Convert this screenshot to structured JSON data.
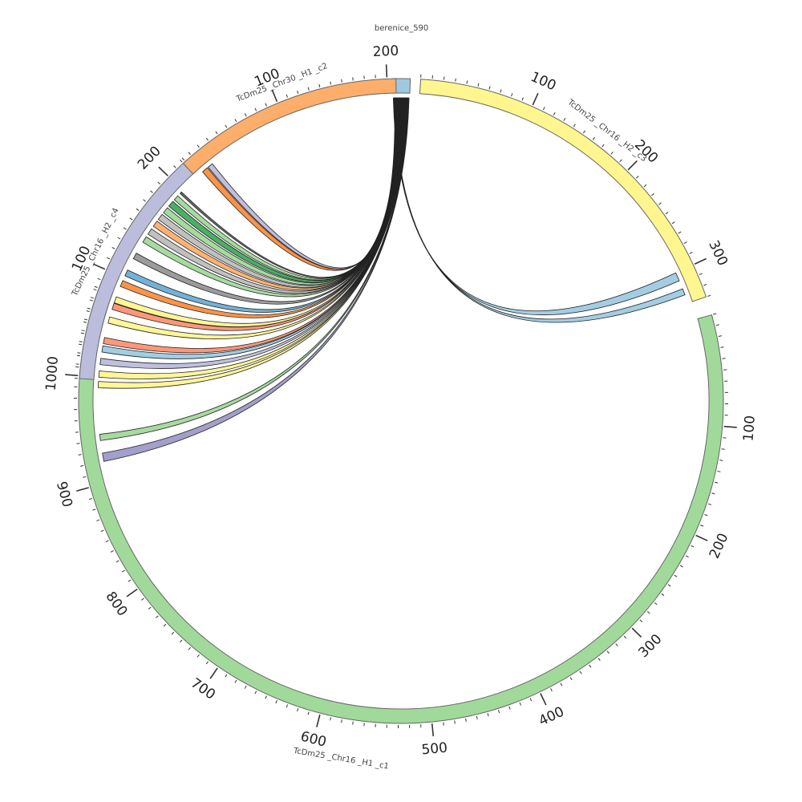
{
  "chart_data": {
    "type": "chord",
    "segments": [
      {
        "id": "berenice_590",
        "label": "berenice_590",
        "length": 7,
        "color": "#9ecae1",
        "ticks": []
      },
      {
        "id": "TcDm25_Chr16_H2_c3",
        "label": "TcDm25 _Chr16 _H2 _c3",
        "length": 330,
        "color": "#fff68f",
        "ticks": [
          "100",
          "200",
          "300"
        ]
      },
      {
        "id": "TcDm25_Chr16_H1_c1",
        "label": "TcDm25 _Chr16 _H1 _c1",
        "length": 1080,
        "color": "#a1d99b",
        "ticks": [
          "100",
          "200",
          "300",
          "400",
          "500",
          "600",
          "700",
          "800",
          "900",
          "1000"
        ]
      },
      {
        "id": "TcDm25_Chr16_H2_c4",
        "label": "TcDm25 _Chr16 _H2 _c4",
        "length": 222,
        "color": "#bcbddc",
        "ticks": [
          "100",
          "200"
        ]
      },
      {
        "id": "TcDm25_Chr30_H1_c2",
        "label": "TcDm25 _Chr30 _H1 _c2",
        "length": 208,
        "color": "#fdae6b",
        "ticks": [
          "100",
          "200"
        ]
      }
    ],
    "links": [
      {
        "segment": "TcDm25_Chr16_H2_c3",
        "start": 300,
        "end": 308,
        "color": "#9ecae1"
      },
      {
        "segment": "TcDm25_Chr16_H2_c3",
        "start": 316,
        "end": 322,
        "color": "#9ecae1"
      },
      {
        "segment": "TcDm25_Chr30_H1_c2",
        "start": 8,
        "end": 14,
        "color": "#fd8d3c"
      },
      {
        "segment": "TcDm25_Chr30_H1_c2",
        "start": 15,
        "end": 20,
        "color": "#bcbddc"
      },
      {
        "segment": "TcDm25_Chr16_H2_c4",
        "start": 196,
        "end": 198,
        "color": "#636363"
      },
      {
        "segment": "TcDm25_Chr16_H2_c4",
        "start": 188,
        "end": 193,
        "color": "#a1d99b"
      },
      {
        "segment": "TcDm25_Chr16_H2_c4",
        "start": 180,
        "end": 186,
        "color": "#41ab5d"
      },
      {
        "segment": "TcDm25_Chr16_H2_c4",
        "start": 172,
        "end": 178,
        "color": "#a1d99b"
      },
      {
        "segment": "TcDm25_Chr16_H2_c4",
        "start": 164,
        "end": 170,
        "color": "#bdbdbd"
      },
      {
        "segment": "TcDm25_Chr16_H2_c4",
        "start": 156,
        "end": 162,
        "color": "#fdae6b"
      },
      {
        "segment": "TcDm25_Chr16_H2_c4",
        "start": 147,
        "end": 153,
        "color": "#bdbdbd"
      },
      {
        "segment": "TcDm25_Chr16_H2_c4",
        "start": 138,
        "end": 144,
        "color": "#a1d99b"
      },
      {
        "segment": "TcDm25_Chr16_H2_c4",
        "start": 120,
        "end": 126,
        "color": "#969696"
      },
      {
        "segment": "TcDm25_Chr16_H2_c4",
        "start": 102,
        "end": 108,
        "color": "#6baed6"
      },
      {
        "segment": "TcDm25_Chr16_H2_c4",
        "start": 91,
        "end": 97,
        "color": "#fd8d3c"
      },
      {
        "segment": "TcDm25_Chr16_H2_c4",
        "start": 68,
        "end": 74,
        "color": "#fc9272"
      },
      {
        "segment": "TcDm25_Chr16_H1_c1",
        "start": 1072,
        "end": 1078,
        "color": "#fff68f"
      },
      {
        "segment": "TcDm25_Chr16_H1_c1",
        "start": 1052,
        "end": 1058,
        "color": "#fff68f"
      },
      {
        "segment": "TcDm25_Chr16_H1_c1",
        "start": 1032,
        "end": 1038,
        "color": "#fc9272"
      },
      {
        "segment": "TcDm25_Chr16_H1_c1",
        "start": 1024,
        "end": 1030,
        "color": "#9ecae1"
      },
      {
        "segment": "TcDm25_Chr16_H1_c1",
        "start": 1012,
        "end": 1018,
        "color": "#bcbddc"
      },
      {
        "segment": "TcDm25_Chr16_H1_c1",
        "start": 1000,
        "end": 1006,
        "color": "#fff68f"
      },
      {
        "segment": "TcDm25_Chr16_H1_c1",
        "start": 990,
        "end": 996,
        "color": "#fff68f"
      },
      {
        "segment": "TcDm25_Chr16_H1_c1",
        "start": 940,
        "end": 946,
        "color": "#a1d99b"
      },
      {
        "segment": "TcDm25_Chr16_H1_c1",
        "start": 920,
        "end": 928,
        "color": "#9e9ac8"
      }
    ]
  }
}
